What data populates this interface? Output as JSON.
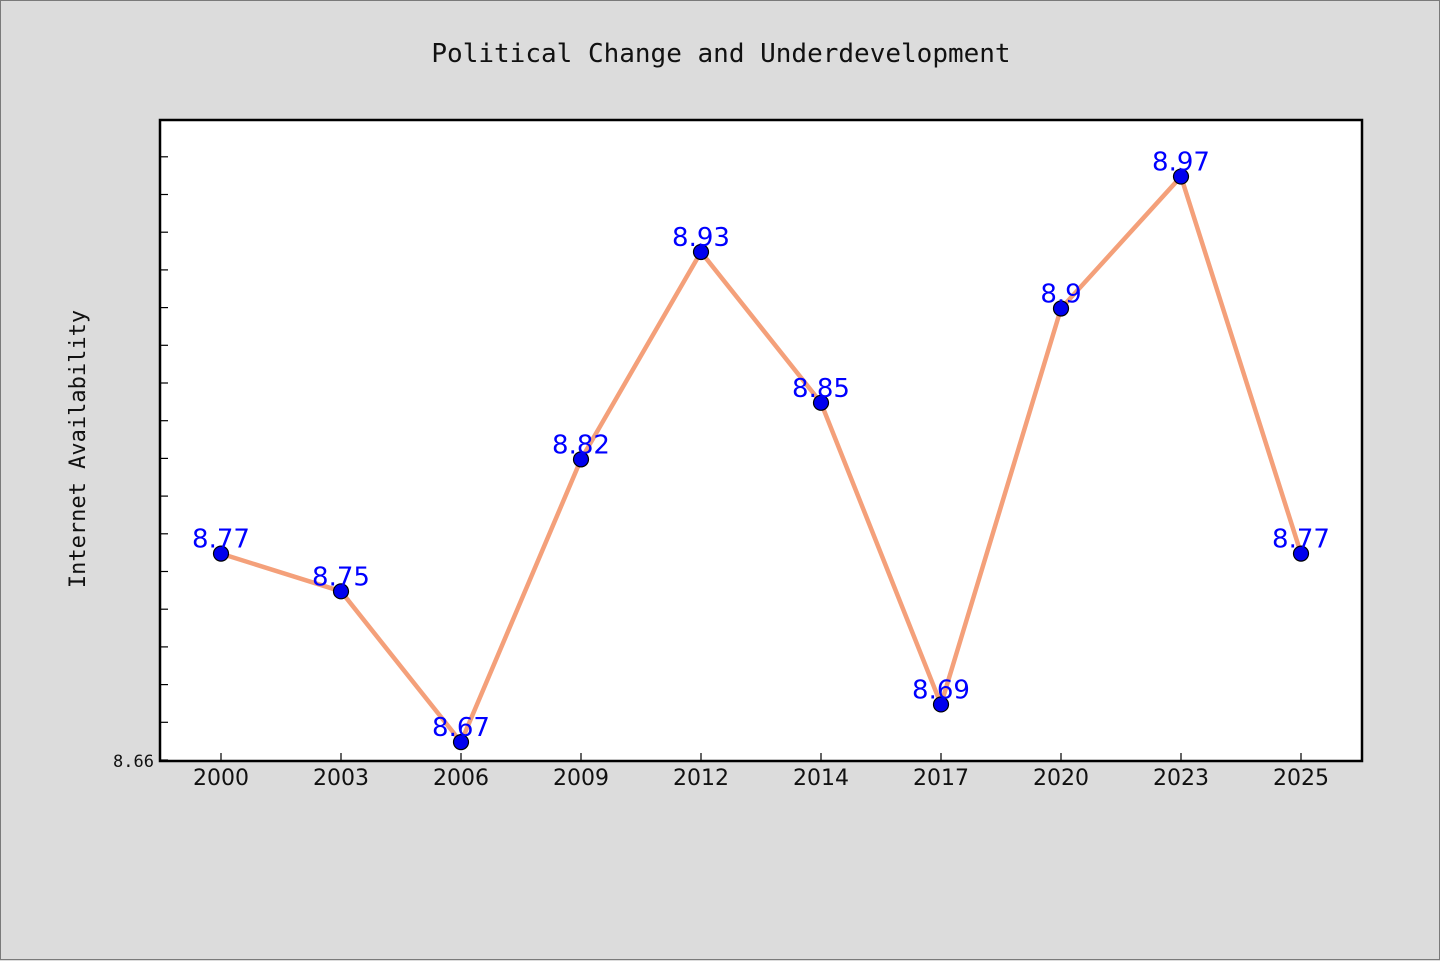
{
  "chart_data": {
    "type": "line",
    "title": "Political Change and Underdevelopment",
    "xlabel": "",
    "ylabel": "Internet Availability",
    "categories": [
      "2000",
      "2003",
      "2006",
      "2009",
      "2012",
      "2014",
      "2017",
      "2020",
      "2023",
      "2025"
    ],
    "series": [
      {
        "values": [
          8.77,
          8.75,
          8.67,
          8.82,
          8.93,
          8.85,
          8.69,
          8.9,
          8.97,
          8.77
        ],
        "labels": [
          "8.77",
          "8.75",
          "8.67",
          "8.82",
          "8.93",
          "8.85",
          "8.69",
          "8.9",
          "8.97",
          "8.77"
        ]
      }
    ],
    "yticks": [
      "8.66"
    ],
    "ylim": [
      8.66,
      9.0
    ],
    "grid": false,
    "legend": "none",
    "colors": {
      "line": "#f4a07a",
      "marker": "#0000ee",
      "label": "#0000ff",
      "background": "#dcdcdc",
      "plot": "#ffffff"
    }
  }
}
